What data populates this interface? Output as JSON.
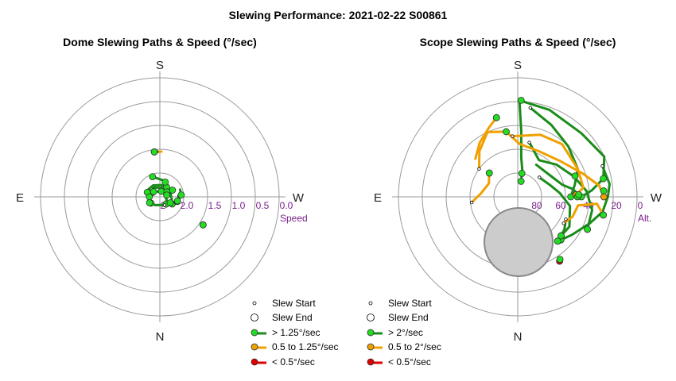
{
  "title": "Slewing Performance: 2021-02-22 S00861",
  "colors": {
    "fast": "#1a8c1a",
    "fast_marker": "#22dd22",
    "medium": "#f0a000",
    "medium_marker": "#f0a000",
    "slow": "#dd0000",
    "slow_marker": "#dd0000",
    "tick_label": "#7a1e8c",
    "grid": "#9a9a9a",
    "shade": "#cccccc"
  },
  "chart_data": [
    {
      "type": "polar-path",
      "title": "Dome Slewing Paths & Speed (°/sec)",
      "compass": {
        "top": "S",
        "bottom": "N",
        "left": "E",
        "right": "W"
      },
      "radial_axis_label": "Speed",
      "radial_tick_labels": [
        "2",
        "2.0",
        "1.5",
        "1.0",
        "0.5",
        "0.0"
      ],
      "radial_range": [
        2.5,
        0.0
      ],
      "legend": {
        "start": "Slew Start",
        "end": "Slew End",
        "fast": "> 1.25°/sec",
        "medium": "0.5 to 1.25°/sec",
        "slow": "< 0.5°/sec"
      },
      "paths": [
        {
          "speed_class": "medium",
          "points": [
            [
              182,
              1.55
            ],
            [
              173,
              1.55
            ]
          ]
        },
        {
          "speed_class": "medium",
          "points": [
            [
              305,
              1.45
            ],
            [
              303,
              1.42
            ]
          ]
        },
        {
          "speed_class": "fast",
          "points": [
            [
              160,
              2.05
            ],
            [
              200,
              2.15
            ],
            [
              240,
              2.25
            ],
            [
              280,
              2.25
            ],
            [
              300,
              2.2
            ]
          ]
        },
        {
          "speed_class": "fast",
          "points": [
            [
              190,
              2.3
            ],
            [
              220,
              2.35
            ],
            [
              255,
              2.4
            ],
            [
              290,
              2.35
            ],
            [
              320,
              2.3
            ]
          ]
        },
        {
          "speed_class": "fast",
          "points": [
            [
              140,
              2.25
            ],
            [
              170,
              2.3
            ],
            [
              205,
              2.32
            ],
            [
              235,
              2.3
            ]
          ]
        },
        {
          "speed_class": "fast",
          "points": [
            [
              110,
              2.18
            ],
            [
              150,
              2.22
            ],
            [
              185,
              2.25
            ],
            [
              215,
              2.25
            ]
          ]
        },
        {
          "speed_class": "fast",
          "points": [
            [
              250,
              2.05
            ],
            [
              265,
              2.05
            ],
            [
              285,
              2.12
            ]
          ]
        },
        {
          "speed_class": "fast",
          "points": [
            [
              100,
              2.3
            ],
            [
              130,
              2.35
            ],
            [
              160,
              2.38
            ],
            [
              195,
              2.38
            ]
          ]
        },
        {
          "speed_class": "fast",
          "points": [
            [
              60,
              2.25
            ],
            [
              90,
              2.3
            ],
            [
              120,
              2.32
            ]
          ]
        },
        {
          "speed_class": "fast",
          "points": [
            [
              330,
              2.3
            ],
            [
              0,
              2.33
            ],
            [
              30,
              2.3
            ],
            [
              55,
              2.27
            ]
          ]
        }
      ],
      "start_markers": [
        [
          176,
          1.55
        ],
        [
          240,
          2.3
        ],
        [
          268,
          2.1
        ],
        [
          290,
          2.15
        ],
        [
          330,
          2.3
        ],
        [
          65,
          2.25
        ],
        [
          120,
          2.25
        ]
      ],
      "end_markers": [
        [
          173,
          1.55
        ],
        [
          303,
          1.42
        ],
        [
          160,
          2.05
        ],
        [
          200,
          2.17
        ],
        [
          242,
          2.2
        ],
        [
          265,
          2.05
        ],
        [
          283,
          2.12
        ],
        [
          300,
          2.25
        ],
        [
          235,
          2.32
        ],
        [
          255,
          2.35
        ],
        [
          110,
          2.22
        ],
        [
          130,
          2.33
        ],
        [
          90,
          2.28
        ],
        [
          60,
          2.25
        ]
      ]
    },
    {
      "type": "polar-path",
      "title": "Scope Slewing Paths & Speed (°/sec)",
      "compass": {
        "top": "S",
        "bottom": "N",
        "left": "E",
        "right": "W"
      },
      "radial_axis_label": "Alt.",
      "radial_tick_labels": [
        "80",
        "60",
        "40",
        "20",
        "0"
      ],
      "radial_range": [
        90,
        0
      ],
      "legend": {
        "start": "Slew Start",
        "end": "Slew End",
        "fast": "> 2°/sec",
        "medium": "0.5 to 2°/sec",
        "slow": "< 0.5°/sec"
      },
      "excluded_region": "grey disk near zenith (north side)",
      "paths": [
        {
          "speed_class": "fast",
          "points": [
            [
              181,
              17
            ],
            [
              183,
              40
            ],
            [
              185,
              60
            ],
            [
              190,
              70
            ],
            [
              192,
              78
            ]
          ]
        },
        {
          "speed_class": "fast",
          "points": [
            [
              181,
              17
            ],
            [
              200,
              20
            ],
            [
              225,
              22
            ],
            [
              245,
              18
            ],
            [
              258,
              24
            ],
            [
              265,
              34
            ],
            [
              270,
              42
            ]
          ]
        },
        {
          "speed_class": "fast",
          "points": [
            [
              188,
              22
            ],
            [
              205,
              30
            ],
            [
              225,
              36
            ],
            [
              245,
              40
            ],
            [
              258,
              46
            ],
            [
              270,
              50
            ]
          ]
        },
        {
          "speed_class": "fast",
          "points": [
            [
              192,
              48
            ],
            [
              210,
              58
            ],
            [
              230,
              52
            ],
            [
              250,
              45
            ],
            [
              265,
              38
            ],
            [
              280,
              33
            ],
            [
              295,
              32
            ]
          ]
        },
        {
          "speed_class": "fast",
          "points": [
            [
              250,
              22
            ],
            [
              262,
              20
            ],
            [
              270,
              22
            ],
            [
              280,
              25
            ],
            [
              290,
              32
            ],
            [
              305,
              40
            ],
            [
              315,
              44
            ]
          ]
        },
        {
          "speed_class": "fast",
          "points": [
            [
              210,
              62
            ],
            [
              240,
              60
            ],
            [
              255,
              55
            ],
            [
              262,
              48
            ],
            [
              268,
              44
            ]
          ]
        },
        {
          "speed_class": "fast",
          "points": [
            [
              228,
              68
            ],
            [
              250,
              64
            ],
            [
              265,
              58
            ],
            [
              280,
              50
            ],
            [
              300,
              45
            ],
            [
              312,
              46
            ]
          ]
        },
        {
          "speed_class": "fast",
          "points": [
            [
              295,
              50
            ],
            [
              305,
              47
            ],
            [
              318,
              45
            ]
          ]
        },
        {
          "speed_class": "medium",
          "points": [
            [
              126,
              54
            ],
            [
              140,
              45
            ],
            [
              155,
              36
            ],
            [
              170,
              40
            ],
            [
              182,
              50
            ],
            [
              205,
              52
            ],
            [
              230,
              48
            ],
            [
              250,
              38
            ],
            [
              262,
              28
            ],
            [
              270,
              25
            ]
          ]
        },
        {
          "speed_class": "medium",
          "points": [
            [
              132,
              47
            ],
            [
              145,
              40
            ],
            [
              158,
              33
            ],
            [
              165,
              28
            ]
          ]
        },
        {
          "speed_class": "medium",
          "points": [
            [
              175,
              44
            ],
            [
              200,
              40
            ],
            [
              220,
              38
            ],
            [
              245,
              40
            ],
            [
              262,
              40
            ],
            [
              268,
              46
            ]
          ]
        },
        {
          "speed_class": "medium",
          "points": [
            [
              300,
              50
            ],
            [
              290,
              46
            ],
            [
              278,
              44
            ],
            [
              275,
              30
            ],
            [
              282,
              24
            ]
          ]
        },
        {
          "speed_class": "medium",
          "points": [
            [
              83,
              55
            ],
            [
              95,
              62
            ],
            [
              115,
              66
            ],
            [
              130,
              62
            ]
          ]
        },
        {
          "speed_class": "slow",
          "points": [
            [
              326,
              33
            ],
            [
              327,
              32
            ]
          ]
        }
      ],
      "start_markers": [
        [
          181,
          17
        ],
        [
          188,
          22
        ],
        [
          192,
          48
        ],
        [
          250,
          22
        ],
        [
          228,
          68
        ],
        [
          126,
          54
        ],
        [
          175,
          44
        ],
        [
          300,
          50
        ],
        [
          83,
          55
        ],
        [
          295,
          50
        ]
      ],
      "end_markers": [
        [
          182,
          17
        ],
        [
          190,
          72
        ],
        [
          258,
          24
        ],
        [
          270,
          45
        ],
        [
          250,
          44
        ],
        [
          295,
          32
        ],
        [
          315,
          44
        ],
        [
          268,
          44
        ],
        [
          312,
          46
        ],
        [
          266,
          25
        ],
        [
          170,
          40
        ],
        [
          165,
          28
        ],
        [
          282,
          24
        ],
        [
          130,
          62
        ],
        [
          318,
          45
        ],
        [
          326,
          33
        ]
      ]
    }
  ]
}
